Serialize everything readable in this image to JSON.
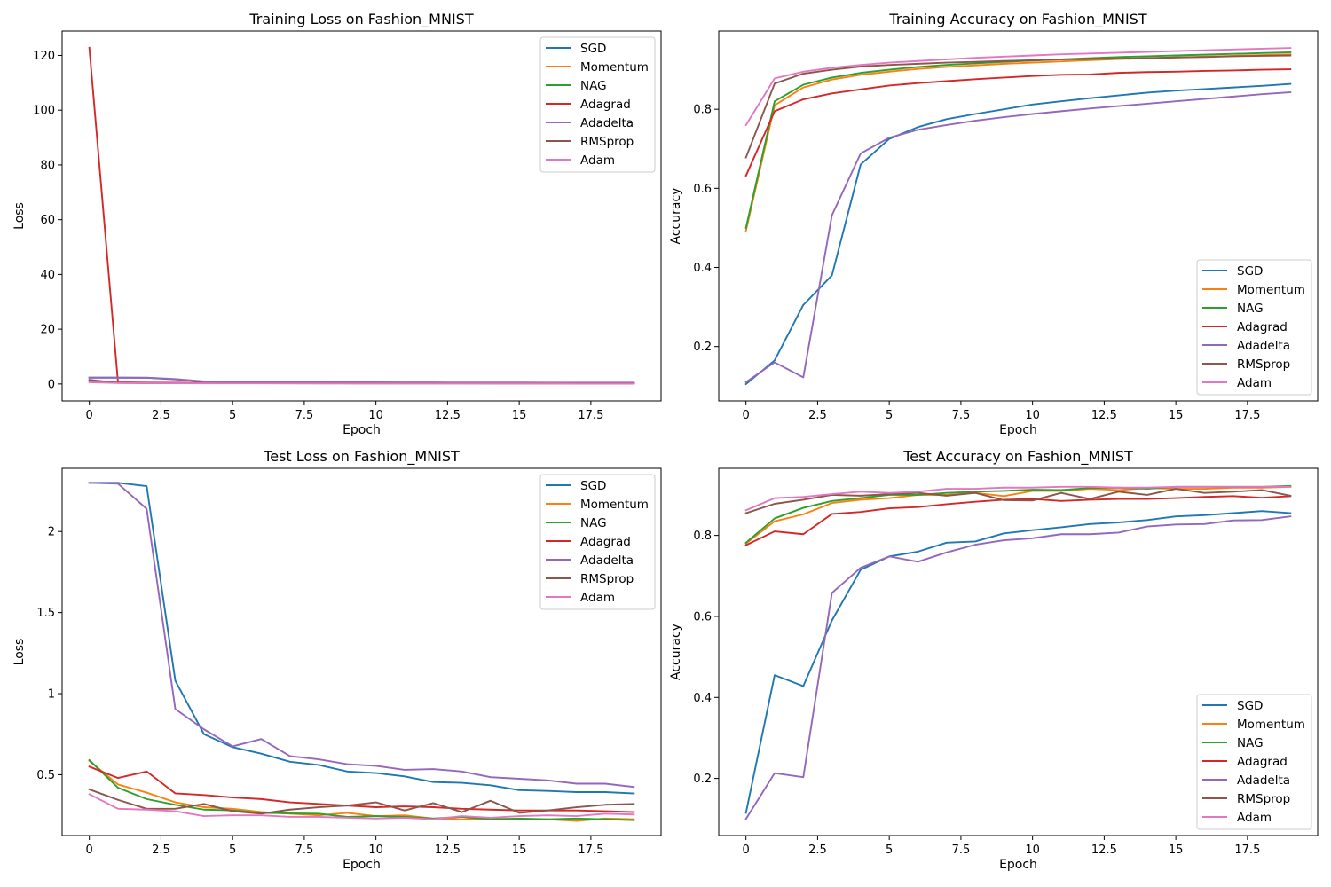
{
  "colors": {
    "SGD": "#1f77b4",
    "Momentum": "#ff7f0e",
    "NAG": "#2ca02c",
    "Adagrad": "#d62728",
    "Adadelta": "#9467bd",
    "RMSprop": "#8c564b",
    "Adam": "#e377c2"
  },
  "chart_data": [
    {
      "type": "line",
      "title": "Training Loss on Fashion_MNIST",
      "xlabel": "Epoch",
      "ylabel": "Loss",
      "xlim": [
        -0.95,
        19.95
      ],
      "ylim": [
        -6.2,
        128.9
      ],
      "xticks": [
        0,
        2.5,
        5,
        7.5,
        10,
        12.5,
        15,
        17.5
      ],
      "yticks": [
        0,
        20,
        40,
        60,
        80,
        100,
        120
      ],
      "grid": false,
      "legend": "upper right",
      "x": [
        0,
        1,
        2,
        3,
        4,
        5,
        6,
        7,
        8,
        9,
        10,
        11,
        12,
        13,
        14,
        15,
        16,
        17,
        18,
        19
      ],
      "series": [
        {
          "name": "SGD",
          "values": [
            2.3,
            2.3,
            2.25,
            1.7,
            0.8,
            0.7,
            0.64,
            0.58,
            0.54,
            0.5,
            0.47,
            0.45,
            0.43,
            0.41,
            0.4,
            0.39,
            0.38,
            0.37,
            0.36,
            0.36
          ]
        },
        {
          "name": "Momentum",
          "values": [
            1.1,
            0.5,
            0.4,
            0.35,
            0.32,
            0.3,
            0.28,
            0.27,
            0.26,
            0.25,
            0.24,
            0.23,
            0.22,
            0.22,
            0.21,
            0.2,
            0.2,
            0.19,
            0.19,
            0.18
          ]
        },
        {
          "name": "NAG",
          "values": [
            1.1,
            0.5,
            0.38,
            0.34,
            0.31,
            0.29,
            0.27,
            0.26,
            0.25,
            0.24,
            0.23,
            0.22,
            0.21,
            0.21,
            0.2,
            0.19,
            0.19,
            0.18,
            0.18,
            0.17
          ]
        },
        {
          "name": "Adagrad",
          "values": [
            122.8,
            0.6,
            0.5,
            0.46,
            0.43,
            0.41,
            0.39,
            0.37,
            0.36,
            0.35,
            0.34,
            0.33,
            0.33,
            0.32,
            0.31,
            0.31,
            0.3,
            0.3,
            0.29,
            0.29
          ]
        },
        {
          "name": "Adadelta",
          "values": [
            2.3,
            2.3,
            2.3,
            1.8,
            0.95,
            0.8,
            0.72,
            0.68,
            0.65,
            0.62,
            0.6,
            0.58,
            0.56,
            0.55,
            0.53,
            0.52,
            0.51,
            0.5,
            0.49,
            0.48
          ]
        },
        {
          "name": "RMSprop",
          "values": [
            1.5,
            0.4,
            0.32,
            0.28,
            0.27,
            0.26,
            0.25,
            0.24,
            0.24,
            0.23,
            0.23,
            0.22,
            0.22,
            0.22,
            0.21,
            0.21,
            0.21,
            0.2,
            0.2,
            0.2
          ]
        },
        {
          "name": "Adam",
          "values": [
            0.6,
            0.34,
            0.29,
            0.26,
            0.24,
            0.23,
            0.22,
            0.21,
            0.2,
            0.19,
            0.19,
            0.18,
            0.18,
            0.17,
            0.17,
            0.16,
            0.16,
            0.15,
            0.15,
            0.15
          ]
        }
      ]
    },
    {
      "type": "line",
      "title": "Training Accuracy on Fashion_MNIST",
      "xlabel": "Epoch",
      "ylabel": "Accuracy",
      "xlim": [
        -0.95,
        19.95
      ],
      "ylim": [
        0.0625,
        0.9977
      ],
      "xticks": [
        0,
        2.5,
        5,
        7.5,
        10,
        12.5,
        15,
        17.5
      ],
      "yticks": [
        0.2,
        0.4,
        0.6,
        0.8
      ],
      "grid": false,
      "legend": "lower right",
      "x": [
        0,
        1,
        2,
        3,
        4,
        5,
        6,
        7,
        8,
        9,
        10,
        11,
        12,
        13,
        14,
        15,
        16,
        17,
        18,
        19
      ],
      "series": [
        {
          "name": "SGD",
          "values": [
            0.105,
            0.165,
            0.305,
            0.38,
            0.66,
            0.725,
            0.755,
            0.775,
            0.788,
            0.8,
            0.812,
            0.82,
            0.828,
            0.835,
            0.842,
            0.847,
            0.851,
            0.855,
            0.859,
            0.864
          ]
        },
        {
          "name": "Momentum",
          "values": [
            0.493,
            0.81,
            0.855,
            0.875,
            0.887,
            0.895,
            0.902,
            0.907,
            0.911,
            0.915,
            0.918,
            0.921,
            0.924,
            0.927,
            0.929,
            0.931,
            0.933,
            0.935,
            0.937,
            0.939
          ]
        },
        {
          "name": "NAG",
          "values": [
            0.5,
            0.82,
            0.862,
            0.88,
            0.892,
            0.9,
            0.907,
            0.912,
            0.916,
            0.92,
            0.923,
            0.926,
            0.929,
            0.932,
            0.934,
            0.936,
            0.938,
            0.94,
            0.942,
            0.944
          ]
        },
        {
          "name": "Adagrad",
          "values": [
            0.632,
            0.795,
            0.825,
            0.84,
            0.85,
            0.86,
            0.866,
            0.871,
            0.876,
            0.88,
            0.884,
            0.887,
            0.888,
            0.892,
            0.894,
            0.895,
            0.897,
            0.898,
            0.9,
            0.901
          ]
        },
        {
          "name": "Adadelta",
          "values": [
            0.11,
            0.16,
            0.122,
            0.532,
            0.688,
            0.728,
            0.748,
            0.76,
            0.771,
            0.78,
            0.788,
            0.795,
            0.802,
            0.808,
            0.814,
            0.82,
            0.826,
            0.832,
            0.838,
            0.843
          ]
        },
        {
          "name": "RMSprop",
          "values": [
            0.678,
            0.865,
            0.89,
            0.9,
            0.908,
            0.912,
            0.915,
            0.918,
            0.92,
            0.922,
            0.924,
            0.926,
            0.927,
            0.928,
            0.929,
            0.931,
            0.932,
            0.934,
            0.935,
            0.936
          ]
        },
        {
          "name": "Adam",
          "values": [
            0.76,
            0.878,
            0.895,
            0.905,
            0.912,
            0.918,
            0.922,
            0.926,
            0.93,
            0.933,
            0.936,
            0.939,
            0.941,
            0.943,
            0.945,
            0.947,
            0.949,
            0.951,
            0.953,
            0.955
          ]
        }
      ]
    },
    {
      "type": "line",
      "title": "Test Loss on Fashion_MNIST",
      "xlabel": "Epoch",
      "ylabel": "Loss",
      "xlim": [
        -0.95,
        19.95
      ],
      "ylim": [
        0.125,
        2.3895
      ],
      "xticks": [
        0,
        2.5,
        5,
        7.5,
        10,
        12.5,
        15,
        17.5
      ],
      "yticks": [
        0.5,
        1.0,
        1.5,
        2.0
      ],
      "grid": false,
      "legend": "upper right",
      "x": [
        0,
        1,
        2,
        3,
        4,
        5,
        6,
        7,
        8,
        9,
        10,
        11,
        12,
        13,
        14,
        15,
        16,
        17,
        18,
        19
      ],
      "series": [
        {
          "name": "SGD",
          "values": [
            2.3,
            2.3,
            2.28,
            1.08,
            0.75,
            0.67,
            0.63,
            0.58,
            0.56,
            0.52,
            0.51,
            0.49,
            0.455,
            0.45,
            0.435,
            0.405,
            0.4,
            0.393,
            0.393,
            0.385
          ]
        },
        {
          "name": "Momentum",
          "values": [
            0.585,
            0.44,
            0.39,
            0.33,
            0.3,
            0.29,
            0.27,
            0.26,
            0.25,
            0.265,
            0.245,
            0.25,
            0.23,
            0.225,
            0.23,
            0.225,
            0.225,
            0.215,
            0.23,
            0.225
          ]
        },
        {
          "name": "NAG",
          "values": [
            0.59,
            0.42,
            0.35,
            0.315,
            0.285,
            0.28,
            0.265,
            0.262,
            0.26,
            0.24,
            0.245,
            0.24,
            0.23,
            0.24,
            0.225,
            0.23,
            0.225,
            0.23,
            0.225,
            0.22
          ]
        },
        {
          "name": "Adagrad",
          "values": [
            0.55,
            0.48,
            0.52,
            0.385,
            0.375,
            0.36,
            0.35,
            0.33,
            0.32,
            0.31,
            0.3,
            0.305,
            0.3,
            0.29,
            0.285,
            0.28,
            0.28,
            0.28,
            0.275,
            0.27
          ]
        },
        {
          "name": "Adadelta",
          "values": [
            2.3,
            2.295,
            2.14,
            0.905,
            0.78,
            0.675,
            0.72,
            0.615,
            0.595,
            0.565,
            0.555,
            0.53,
            0.535,
            0.52,
            0.485,
            0.475,
            0.465,
            0.445,
            0.445,
            0.425
          ]
        },
        {
          "name": "RMSprop",
          "values": [
            0.41,
            0.345,
            0.29,
            0.29,
            0.32,
            0.275,
            0.26,
            0.285,
            0.3,
            0.31,
            0.33,
            0.28,
            0.325,
            0.27,
            0.34,
            0.265,
            0.28,
            0.3,
            0.315,
            0.32
          ]
        },
        {
          "name": "Adam",
          "values": [
            0.38,
            0.29,
            0.285,
            0.275,
            0.245,
            0.25,
            0.25,
            0.24,
            0.24,
            0.235,
            0.23,
            0.235,
            0.225,
            0.245,
            0.235,
            0.245,
            0.25,
            0.245,
            0.26,
            0.255
          ]
        }
      ]
    },
    {
      "type": "line",
      "title": "Test Accuracy on Fashion_MNIST",
      "xlabel": "Epoch",
      "ylabel": "Accuracy",
      "xlim": [
        -0.95,
        19.95
      ],
      "ylim": [
        0.059,
        0.9656
      ],
      "xticks": [
        0,
        2.5,
        5,
        7.5,
        10,
        12.5,
        15,
        17.5
      ],
      "yticks": [
        0.2,
        0.4,
        0.6,
        0.8
      ],
      "grid": false,
      "legend": "lower right",
      "x": [
        0,
        1,
        2,
        3,
        4,
        5,
        6,
        7,
        8,
        9,
        10,
        11,
        12,
        13,
        14,
        15,
        16,
        17,
        18,
        19
      ],
      "series": [
        {
          "name": "SGD",
          "values": [
            0.115,
            0.455,
            0.428,
            0.59,
            0.715,
            0.748,
            0.76,
            0.782,
            0.785,
            0.805,
            0.813,
            0.82,
            0.828,
            0.832,
            0.838,
            0.847,
            0.85,
            0.855,
            0.86,
            0.855
          ]
        },
        {
          "name": "Momentum",
          "values": [
            0.78,
            0.835,
            0.852,
            0.88,
            0.888,
            0.892,
            0.9,
            0.9,
            0.905,
            0.897,
            0.91,
            0.91,
            0.915,
            0.912,
            0.917,
            0.915,
            0.915,
            0.918,
            0.918,
            0.92
          ]
        },
        {
          "name": "NAG",
          "values": [
            0.782,
            0.842,
            0.868,
            0.885,
            0.892,
            0.9,
            0.9,
            0.905,
            0.908,
            0.91,
            0.913,
            0.912,
            0.917,
            0.918,
            0.915,
            0.92,
            0.92,
            0.92,
            0.92,
            0.922
          ]
        },
        {
          "name": "Adagrad",
          "values": [
            0.776,
            0.81,
            0.803,
            0.853,
            0.858,
            0.867,
            0.87,
            0.877,
            0.883,
            0.888,
            0.89,
            0.885,
            0.888,
            0.89,
            0.89,
            0.892,
            0.895,
            0.897,
            0.893,
            0.897
          ]
        },
        {
          "name": "Adadelta",
          "values": [
            0.1,
            0.213,
            0.203,
            0.658,
            0.72,
            0.748,
            0.735,
            0.758,
            0.777,
            0.788,
            0.793,
            0.803,
            0.803,
            0.807,
            0.822,
            0.827,
            0.828,
            0.837,
            0.838,
            0.847
          ]
        },
        {
          "name": "RMSprop",
          "values": [
            0.855,
            0.878,
            0.888,
            0.9,
            0.898,
            0.902,
            0.905,
            0.898,
            0.905,
            0.887,
            0.886,
            0.905,
            0.89,
            0.908,
            0.9,
            0.915,
            0.905,
            0.908,
            0.912,
            0.898
          ]
        },
        {
          "name": "Adam",
          "values": [
            0.862,
            0.892,
            0.895,
            0.902,
            0.908,
            0.905,
            0.908,
            0.915,
            0.915,
            0.918,
            0.918,
            0.92,
            0.92,
            0.918,
            0.918,
            0.92,
            0.92,
            0.92,
            0.92,
            0.92
          ]
        }
      ]
    }
  ]
}
